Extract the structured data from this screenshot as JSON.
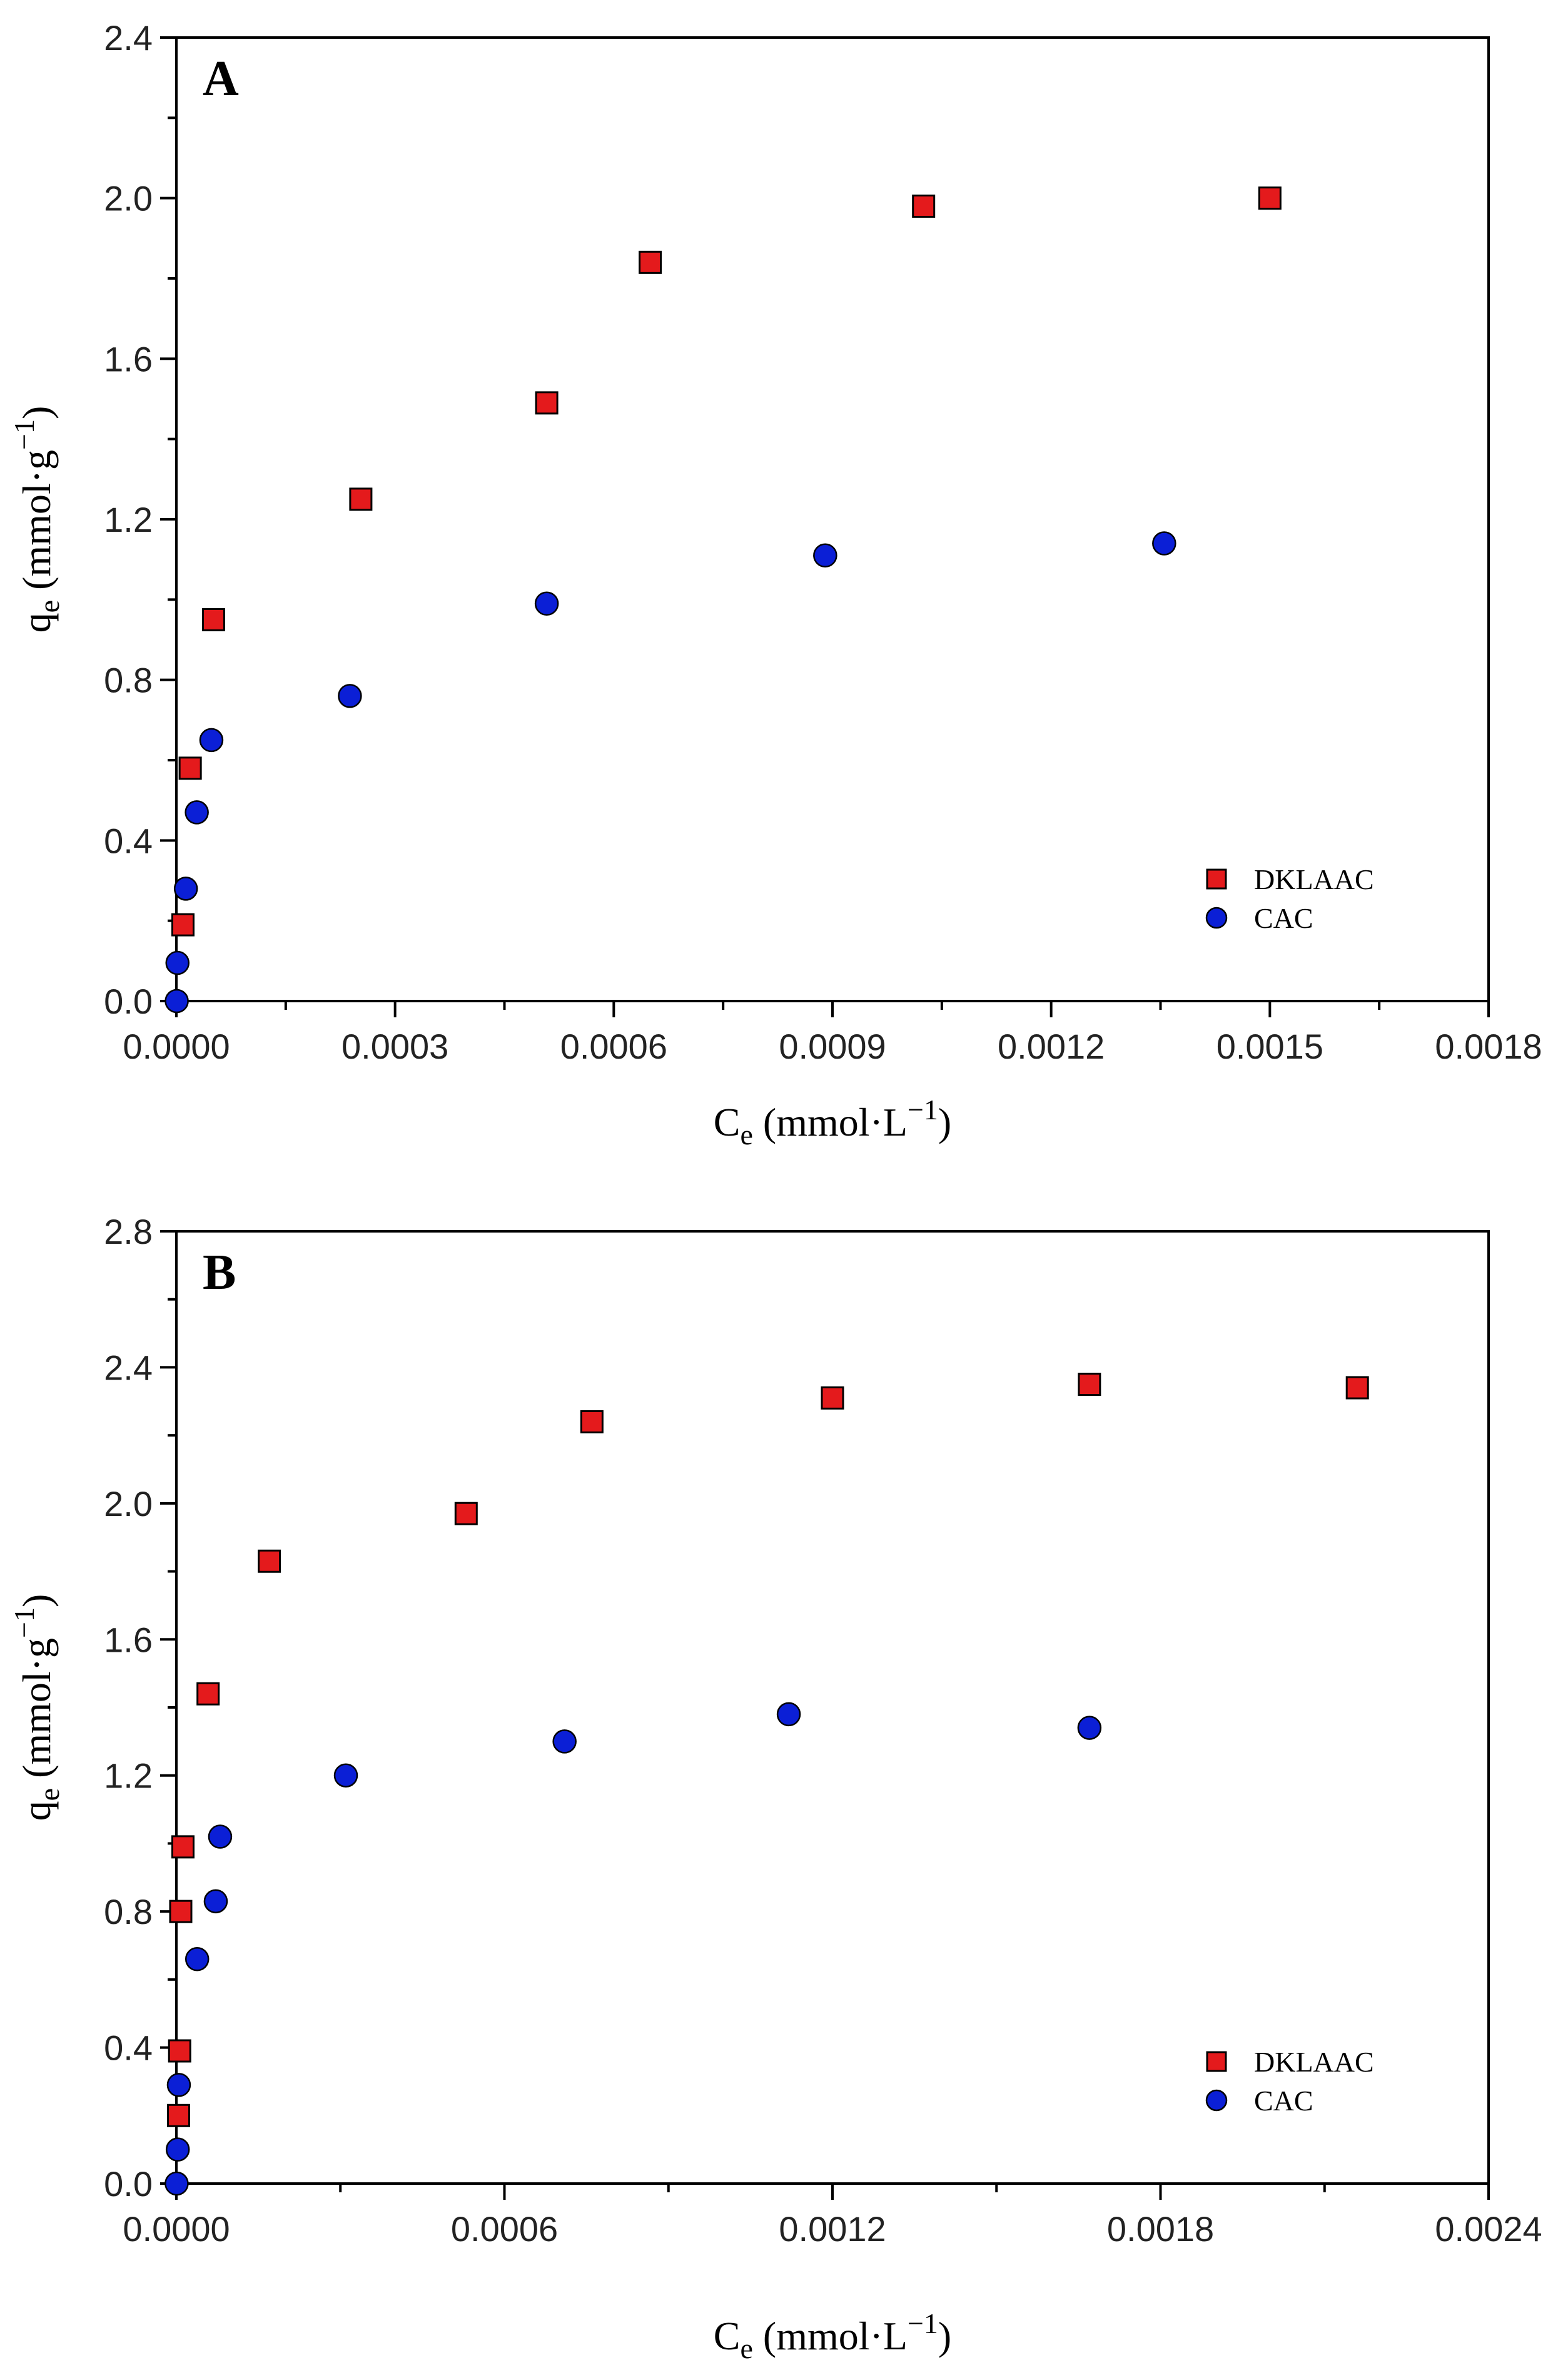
{
  "colors": {
    "series_1": "#e41a1c",
    "series_2": "#0b1fd6",
    "axis": "#000000"
  },
  "chart_data": [
    {
      "panel": "A",
      "type": "scatter",
      "xlabel": {
        "main": "C",
        "sub": "e",
        "unit_open": " (mmol·L",
        "sup": "−1",
        "unit_close": ")"
      },
      "ylabel": {
        "main": "q",
        "sub": "e",
        "unit_open": " (mmol·g",
        "sup": "−1",
        "unit_close": ")"
      },
      "xlim": [
        0,
        0.0018
      ],
      "ylim": [
        0,
        2.4
      ],
      "x_ticks": [
        0,
        0.0003,
        0.0006,
        0.0009,
        0.0012,
        0.0015,
        0.0018
      ],
      "x_tick_labels": [
        "0.0000",
        "0.0003",
        "0.0006",
        "0.0009",
        "0.0012",
        "0.0015",
        "0.0018"
      ],
      "y_ticks": [
        0,
        0.4,
        0.8,
        1.2,
        1.6,
        2.0,
        2.4
      ],
      "y_tick_labels": [
        "0.0",
        "0.4",
        "0.8",
        "1.2",
        "1.6",
        "2.0",
        "2.4"
      ],
      "legend_position": "bottom-right",
      "series": [
        {
          "name": "DKLAAC",
          "marker": "square",
          "x": [
            9e-06,
            1.9e-05,
            5.1e-05,
            0.000253,
            0.000508,
            0.00065,
            0.001025,
            0.0015
          ],
          "y": [
            0.19,
            0.58,
            0.95,
            1.25,
            1.49,
            1.84,
            1.98,
            2.0
          ]
        },
        {
          "name": "CAC",
          "marker": "circle",
          "x": [
            5e-07,
            1.5e-06,
            1.3e-05,
            2.8e-05,
            4.8e-05,
            0.000238,
            0.000508,
            0.00089,
            0.001355
          ],
          "y": [
            0.0,
            0.095,
            0.28,
            0.47,
            0.65,
            0.76,
            0.99,
            1.11,
            1.14
          ]
        }
      ]
    },
    {
      "panel": "B",
      "type": "scatter",
      "xlabel": {
        "main": "C",
        "sub": "e",
        "unit_open": " (mmol·L",
        "sup": "−1",
        "unit_close": ")"
      },
      "ylabel": {
        "main": "q",
        "sub": "e",
        "unit_open": " (mmol·g",
        "sup": "−1",
        "unit_close": ")"
      },
      "xlim": [
        0,
        0.0024
      ],
      "ylim": [
        0,
        2.8
      ],
      "x_ticks": [
        0,
        0.0006,
        0.0012,
        0.0018,
        0.0024
      ],
      "x_tick_labels": [
        "0.0000",
        "0.0006",
        "0.0012",
        "0.0018",
        "0.0024"
      ],
      "y_ticks": [
        0,
        0.4,
        0.8,
        1.2,
        1.6,
        2.0,
        2.4,
        2.8
      ],
      "y_tick_labels": [
        "0.0",
        "0.4",
        "0.8",
        "1.2",
        "1.6",
        "2.0",
        "2.4",
        "2.8"
      ],
      "legend_position": "bottom-right",
      "series": [
        {
          "name": "DKLAAC",
          "marker": "square",
          "x": [
            4e-06,
            6e-06,
            8e-06,
            1.2e-05,
            5.8e-05,
            0.00017,
            0.00053,
            0.00076,
            0.0012,
            0.00167,
            0.00216
          ],
          "y": [
            0.2,
            0.39,
            0.8,
            0.99,
            1.44,
            1.83,
            1.97,
            2.24,
            2.31,
            2.35,
            2.34
          ]
        },
        {
          "name": "CAC",
          "marker": "circle",
          "x": [
            5e-07,
            2.5e-06,
            4.5e-06,
            3.8e-05,
            7.2e-05,
            8e-05,
            0.00031,
            0.00071,
            0.00112,
            0.00167
          ],
          "y": [
            0.0,
            0.1,
            0.29,
            0.66,
            0.83,
            1.02,
            1.2,
            1.3,
            1.38,
            1.34
          ]
        }
      ]
    }
  ]
}
